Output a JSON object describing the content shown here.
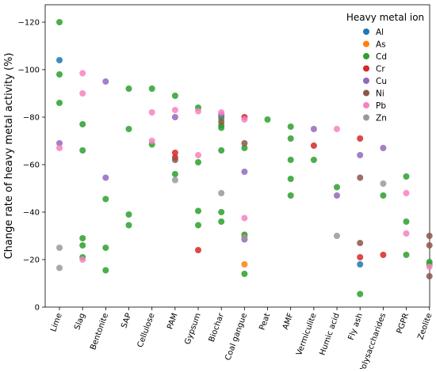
{
  "chart_data": {
    "type": "scatter",
    "title": "",
    "xlabel": "",
    "ylabel": "Change rate of heavy metal activity (%)",
    "ylim": [
      0,
      -125
    ],
    "yticks": [
      0,
      -20,
      -40,
      -60,
      -80,
      -100,
      -120
    ],
    "grid": false,
    "legend_position": "top-right",
    "legend_title": "Heavy metal ion",
    "categories": [
      "Lime",
      "Slag",
      "Bentonite",
      "SAP",
      "Cellulose",
      "PAM",
      "Gypsum",
      "Biochar",
      "Coal gangue",
      "Peat",
      "AMF",
      "Vermiculite",
      "Humic acid",
      "Fly ash",
      "Polysaccharides",
      "PGPR",
      "Zeolite"
    ],
    "series": [
      {
        "name": "Al",
        "color": "#1f77b4",
        "points": [
          {
            "x": "Lime",
            "y": -104
          },
          {
            "x": "Fly ash",
            "y": -18
          }
        ]
      },
      {
        "name": "As",
        "color": "#ff7f0e",
        "points": [
          {
            "x": "Coal gangue",
            "y": -18
          },
          {
            "x": "Coal gangue",
            "y": -30
          }
        ]
      },
      {
        "name": "Cd",
        "color": "#2ca02c",
        "points": [
          {
            "x": "Lime",
            "y": -120
          },
          {
            "x": "Lime",
            "y": -98
          },
          {
            "x": "Lime",
            "y": -86
          },
          {
            "x": "Slag",
            "y": -77
          },
          {
            "x": "Slag",
            "y": -66
          },
          {
            "x": "Slag",
            "y": -29
          },
          {
            "x": "Slag",
            "y": -26
          },
          {
            "x": "Slag",
            "y": -21
          },
          {
            "x": "Bentonite",
            "y": -45.5
          },
          {
            "x": "Bentonite",
            "y": -25
          },
          {
            "x": "Bentonite",
            "y": -15.5
          },
          {
            "x": "SAP",
            "y": -92
          },
          {
            "x": "SAP",
            "y": -75
          },
          {
            "x": "SAP",
            "y": -39
          },
          {
            "x": "SAP",
            "y": -34.5
          },
          {
            "x": "Cellulose",
            "y": -92
          },
          {
            "x": "Cellulose",
            "y": -68.5
          },
          {
            "x": "PAM",
            "y": -89
          },
          {
            "x": "PAM",
            "y": -56
          },
          {
            "x": "Gypsum",
            "y": -84
          },
          {
            "x": "Gypsum",
            "y": -61
          },
          {
            "x": "Gypsum",
            "y": -40.5
          },
          {
            "x": "Gypsum",
            "y": -34.5
          },
          {
            "x": "Biochar",
            "y": -80.5
          },
          {
            "x": "Biochar",
            "y": -79.5
          },
          {
            "x": "Biochar",
            "y": -76.5
          },
          {
            "x": "Biochar",
            "y": -75.5
          },
          {
            "x": "Biochar",
            "y": -66
          },
          {
            "x": "Biochar",
            "y": -40
          },
          {
            "x": "Biochar",
            "y": -36
          },
          {
            "x": "Coal gangue",
            "y": -67
          },
          {
            "x": "Coal gangue",
            "y": -30.5
          },
          {
            "x": "Coal gangue",
            "y": -14
          },
          {
            "x": "Peat",
            "y": -79
          },
          {
            "x": "AMF",
            "y": -76
          },
          {
            "x": "AMF",
            "y": -71
          },
          {
            "x": "AMF",
            "y": -62
          },
          {
            "x": "AMF",
            "y": -54
          },
          {
            "x": "AMF",
            "y": -47
          },
          {
            "x": "Vermiculite",
            "y": -62
          },
          {
            "x": "Humic acid",
            "y": -50.5
          },
          {
            "x": "Fly ash",
            "y": -5.5
          },
          {
            "x": "Polysaccharides",
            "y": -47
          },
          {
            "x": "PGPR",
            "y": -55
          },
          {
            "x": "PGPR",
            "y": -36
          },
          {
            "x": "PGPR",
            "y": -22
          },
          {
            "x": "Zeolite",
            "y": -19
          },
          {
            "x": "Zeolite",
            "y": -18
          }
        ]
      },
      {
        "name": "Cr",
        "color": "#d62728",
        "points": [
          {
            "x": "PAM",
            "y": -65
          },
          {
            "x": "PAM",
            "y": -63
          },
          {
            "x": "Gypsum",
            "y": -24
          },
          {
            "x": "Coal gangue",
            "y": -80
          },
          {
            "x": "Vermiculite",
            "y": -68
          },
          {
            "x": "Fly ash",
            "y": -71
          },
          {
            "x": "Fly ash",
            "y": -21
          },
          {
            "x": "Polysaccharides",
            "y": -22
          }
        ]
      },
      {
        "name": "Cu",
        "color": "#9467bd",
        "points": [
          {
            "x": "Lime",
            "y": -69
          },
          {
            "x": "Bentonite",
            "y": -95
          },
          {
            "x": "Bentonite",
            "y": -54.5
          },
          {
            "x": "PAM",
            "y": -80
          },
          {
            "x": "Biochar",
            "y": -81
          },
          {
            "x": "Coal gangue",
            "y": -57
          },
          {
            "x": "Coal gangue",
            "y": -28.5
          },
          {
            "x": "Vermiculite",
            "y": -75
          },
          {
            "x": "Humic acid",
            "y": -47
          },
          {
            "x": "Fly ash",
            "y": -64
          },
          {
            "x": "Polysaccharides",
            "y": -67
          }
        ]
      },
      {
        "name": "Ni",
        "color": "#8c564b",
        "points": [
          {
            "x": "PAM",
            "y": -62
          },
          {
            "x": "Biochar",
            "y": -78
          },
          {
            "x": "Coal gangue",
            "y": -69
          },
          {
            "x": "Fly ash",
            "y": -54.5
          },
          {
            "x": "Fly ash",
            "y": -27
          },
          {
            "x": "Zeolite",
            "y": -30
          },
          {
            "x": "Zeolite",
            "y": -26
          },
          {
            "x": "Zeolite",
            "y": -13
          }
        ]
      },
      {
        "name": "Pb",
        "color": "#f781bf",
        "points": [
          {
            "x": "Lime",
            "y": -67
          },
          {
            "x": "Slag",
            "y": -98.5
          },
          {
            "x": "Slag",
            "y": -90
          },
          {
            "x": "Slag",
            "y": -20
          },
          {
            "x": "Cellulose",
            "y": -82
          },
          {
            "x": "Cellulose",
            "y": -70
          },
          {
            "x": "PAM",
            "y": -83
          },
          {
            "x": "Gypsum",
            "y": -82.5
          },
          {
            "x": "Gypsum",
            "y": -64
          },
          {
            "x": "Biochar",
            "y": -82
          },
          {
            "x": "Coal gangue",
            "y": -79
          },
          {
            "x": "Coal gangue",
            "y": -37.5
          },
          {
            "x": "Humic acid",
            "y": -75
          },
          {
            "x": "PGPR",
            "y": -48
          },
          {
            "x": "PGPR",
            "y": -31
          },
          {
            "x": "Zeolite",
            "y": -17
          }
        ]
      },
      {
        "name": "Zn",
        "color": "#999999",
        "points": [
          {
            "x": "Lime",
            "y": -25
          },
          {
            "x": "Lime",
            "y": -16.5
          },
          {
            "x": "PAM",
            "y": -53.5
          },
          {
            "x": "Biochar",
            "y": -48
          },
          {
            "x": "Coal gangue",
            "y": -29.5
          },
          {
            "x": "Humic acid",
            "y": -30
          },
          {
            "x": "Polysaccharides",
            "y": -52
          }
        ]
      }
    ]
  }
}
